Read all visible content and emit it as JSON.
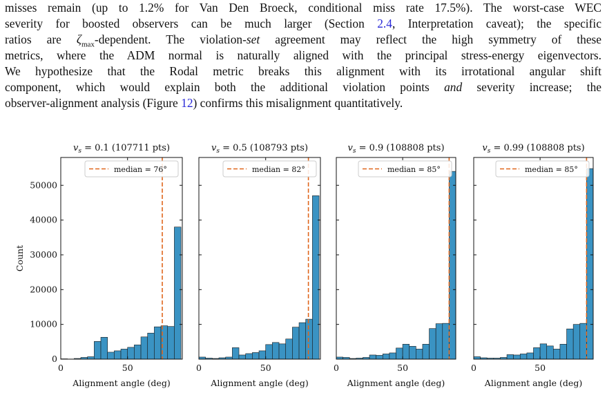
{
  "paragraph": {
    "lines": [
      [
        "misses remain (up to 1.2% for Van Den Broeck, conditional miss rate 17.5%). The worst-case WEC"
      ],
      [
        "severity for boosted observers can be much larger (Section ",
        "2.4",
        ", Interpretation caveat); the specific"
      ],
      [
        "ratios are ",
        "ζ",
        "max",
        "-dependent. The violation-",
        "set",
        " agreement may reflect the high symmetry of these"
      ],
      [
        "metrics, where the ADM normal is naturally aligned with the principal stress-energy eigenvectors."
      ],
      [
        "We hypothesize that the Rodal metric breaks this alignment with its irrotational angular shift"
      ],
      [
        "component, which would explain both the additional violation points ",
        "and",
        " severity increase; the"
      ],
      [
        "observer-alignment analysis (Figure ",
        "12",
        ") confirms this misalignment quantitatively."
      ]
    ]
  },
  "chart_data": [
    {
      "type": "histogram",
      "title": {
        "symbol": "v",
        "subscript": "s",
        "text": " = 0.1 (107711 pts)"
      },
      "bins": [
        0,
        5,
        10,
        15,
        20,
        25,
        30,
        35,
        40,
        45,
        50,
        55,
        60,
        65,
        70,
        75,
        80,
        85,
        90
      ],
      "values": [
        100,
        50,
        200,
        500,
        700,
        5100,
        6300,
        2000,
        2400,
        2900,
        3400,
        4100,
        6400,
        7500,
        9300,
        9600,
        9400,
        38000
      ],
      "color": "#3a93c3",
      "median_line": {
        "value": 76,
        "label": "median = 76°"
      },
      "median_color": "#e0661c",
      "xlim": [
        0,
        91
      ],
      "xticks": [
        0,
        50
      ],
      "ylim": [
        0,
        58000
      ],
      "yticks": [
        0,
        10000,
        20000,
        30000,
        40000,
        50000
      ],
      "ytick_labels": true,
      "xlabel": "Alignment angle (deg)",
      "ylabel": "Count"
    },
    {
      "type": "histogram",
      "title": {
        "symbol": "v",
        "subscript": "s",
        "text": " = 0.5 (108793 pts)"
      },
      "bins": [
        0,
        5,
        10,
        15,
        20,
        25,
        30,
        35,
        40,
        45,
        50,
        55,
        60,
        65,
        70,
        75,
        80,
        85,
        90
      ],
      "values": [
        600,
        300,
        200,
        400,
        600,
        3300,
        1200,
        1600,
        1900,
        2400,
        4200,
        4800,
        4400,
        5800,
        9200,
        10500,
        11500,
        47000
      ],
      "color": "#3a93c3",
      "median_line": {
        "value": 82,
        "label": "median = 82°"
      },
      "median_color": "#e0661c",
      "xlim": [
        0,
        91
      ],
      "xticks": [
        0,
        50
      ],
      "ylim": [
        0,
        58000
      ],
      "yticks": [
        0,
        10000,
        20000,
        30000,
        40000,
        50000
      ],
      "ytick_labels": false,
      "xlabel": "Alignment angle (deg)"
    },
    {
      "type": "histogram",
      "title": {
        "symbol": "v",
        "subscript": "s",
        "text": " = 0.9 (108808 pts)"
      },
      "bins": [
        0,
        5,
        10,
        15,
        20,
        25,
        30,
        35,
        40,
        45,
        50,
        55,
        60,
        65,
        70,
        75,
        80,
        85,
        90
      ],
      "values": [
        600,
        500,
        200,
        300,
        500,
        1200,
        1100,
        1500,
        1800,
        3200,
        4300,
        3700,
        2900,
        4300,
        8800,
        10200,
        10300,
        54000
      ],
      "color": "#3a93c3",
      "median_line": {
        "value": 85,
        "label": "median = 85°"
      },
      "median_color": "#e0661c",
      "xlim": [
        0,
        90
      ],
      "xticks": [
        0,
        50
      ],
      "ylim": [
        0,
        58000
      ],
      "yticks": [
        0,
        10000,
        20000,
        30000,
        40000,
        50000
      ],
      "ytick_labels": false,
      "xlabel": "Alignment angle (deg)"
    },
    {
      "type": "histogram",
      "title": {
        "symbol": "v",
        "subscript": "s",
        "text": " = 0.99 (108808 pts)"
      },
      "bins": [
        0,
        5,
        10,
        15,
        20,
        25,
        30,
        35,
        40,
        45,
        50,
        55,
        60,
        65,
        70,
        75,
        80,
        85,
        90
      ],
      "values": [
        700,
        400,
        300,
        300,
        500,
        1300,
        1200,
        1500,
        1800,
        3300,
        4400,
        3800,
        2900,
        4300,
        8700,
        10000,
        10300,
        54800
      ],
      "color": "#3a93c3",
      "median_line": {
        "value": 85,
        "label": "median = 85°"
      },
      "median_color": "#e0661c",
      "xlim": [
        0,
        90
      ],
      "xticks": [
        0,
        50
      ],
      "ylim": [
        0,
        58000
      ],
      "yticks": [
        0,
        10000,
        20000,
        30000,
        40000,
        50000
      ],
      "ytick_labels": false,
      "xlabel": "Alignment angle (deg)"
    }
  ]
}
